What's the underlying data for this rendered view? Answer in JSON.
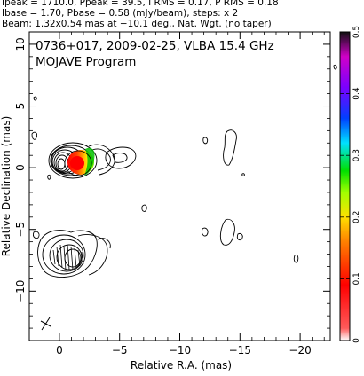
{
  "header": {
    "line1": "Ipeak = 1710.0, Ppeak = 39.5, I RMS = 0.17, P RMS = 0.18",
    "line2": "Ibase = 1.70, Pbase = 0.58 (mJy/beam), steps: x 2",
    "line3": "Beam: 1.32x0.54 mas at −10.1 deg., Nat. Wgt. (no taper)"
  },
  "plot": {
    "title_line1": "0736+017, 2009-02-25, VLBA 15.4 GHz",
    "title_line2": "MOJAVE Program",
    "xlabel": "Relative R.A. (mas)",
    "ylabel": "Relative Declination (mas)",
    "x_ticks": [
      "0",
      "−5",
      "−10",
      "−15",
      "−20"
    ],
    "y_ticks": [
      "10",
      "5",
      "0",
      "−5",
      "−10"
    ],
    "xlim": [
      2.5,
      -22.5
    ],
    "ylim": [
      -14,
      11
    ]
  },
  "colorbar": {
    "ticks": [
      "0",
      "0.1",
      "0.2",
      "0.3",
      "0.4",
      "0.5"
    ],
    "range": [
      0,
      0.5
    ],
    "colors": [
      "#ffffff",
      "#ff4a4a",
      "#ff0000",
      "#ff7a00",
      "#ffd800",
      "#b8ff00",
      "#00e000",
      "#00d8ff",
      "#0040ff",
      "#7000ff",
      "#d000d0",
      "#101010"
    ]
  },
  "colors": {
    "contour": "#000000",
    "axis": "#000000"
  }
}
